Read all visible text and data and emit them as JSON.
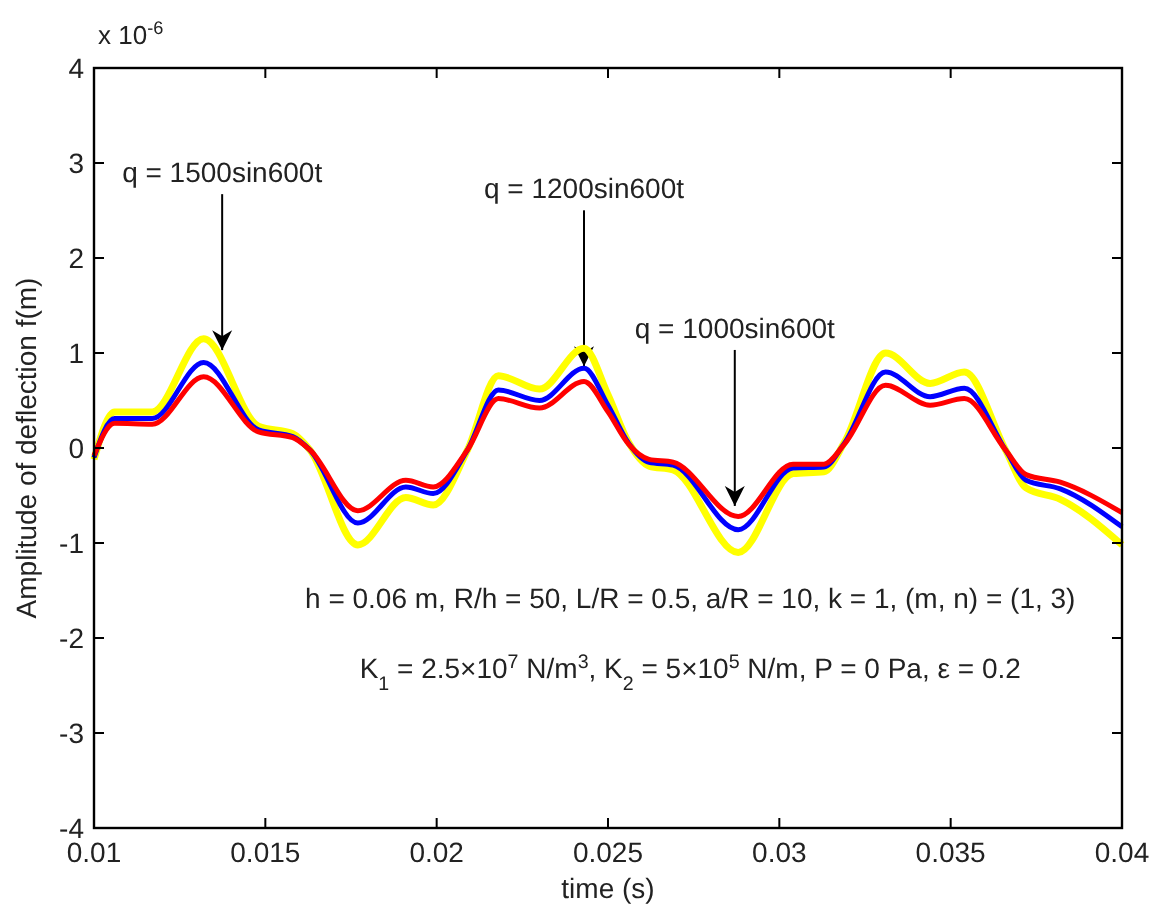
{
  "chart_data": {
    "type": "line",
    "xlabel": "time (s)",
    "ylabel": "Amplitude of deflection f(m)",
    "x": [
      0.01,
      0.0106,
      0.0117,
      0.0132,
      0.0148,
      0.0158,
      0.0163,
      0.0177,
      0.0191,
      0.0199,
      0.0209,
      0.0218,
      0.023,
      0.0243,
      0.025,
      0.0256,
      0.0262,
      0.0269,
      0.0288,
      0.0304,
      0.0313,
      0.0319,
      0.0331,
      0.0344,
      0.0354,
      0.0366,
      0.0372,
      0.0382,
      0.04
    ],
    "series": [
      {
        "color": "#ffff00",
        "values": [
          -0.12,
          0.38,
          0.38,
          1.15,
          0.23,
          0.15,
          -0.02,
          -1.02,
          -0.52,
          -0.6,
          -0.02,
          0.76,
          0.62,
          1.05,
          0.56,
          0.06,
          -0.19,
          -0.23,
          -1.1,
          -0.27,
          -0.25,
          0.06,
          1.0,
          0.68,
          0.8,
          -0.02,
          -0.42,
          -0.54,
          -1.02
        ]
      },
      {
        "color": "#0000ff",
        "values": [
          -0.1,
          0.31,
          0.31,
          0.9,
          0.19,
          0.12,
          -0.02,
          -0.79,
          -0.41,
          -0.48,
          -0.02,
          0.61,
          0.5,
          0.84,
          0.45,
          0.05,
          -0.15,
          -0.18,
          -0.86,
          -0.21,
          -0.2,
          0.05,
          0.8,
          0.54,
          0.63,
          -0.02,
          -0.34,
          -0.43,
          -0.83
        ]
      },
      {
        "color": "#ff0000",
        "values": [
          -0.08,
          0.26,
          0.25,
          0.75,
          0.17,
          0.11,
          -0.02,
          -0.66,
          -0.34,
          -0.41,
          -0.02,
          0.52,
          0.42,
          0.7,
          0.38,
          0.04,
          -0.12,
          -0.15,
          -0.72,
          -0.17,
          -0.17,
          0.04,
          0.66,
          0.45,
          0.52,
          -0.02,
          -0.28,
          -0.36,
          -0.68
        ]
      }
    ],
    "xlim": [
      0.01,
      0.04
    ],
    "xticks": [
      0.01,
      0.015,
      0.02,
      0.025,
      0.03,
      0.035,
      0.04
    ],
    "ylim": [
      -4,
      4
    ],
    "yticks": [
      -4,
      -3,
      -2,
      -1,
      0,
      1,
      2,
      3,
      4
    ],
    "grid": false,
    "marker": "none",
    "line_style": "solid",
    "annotations": [
      "x 10$^{-6}$",
      {
        "text": "q = 1500sin600t",
        "x": 0.01374,
        "y": 1.03
      },
      {
        "text": "q = 1200sin600t",
        "x": 0.0243,
        "y": 0.86
      },
      {
        "text": "q = 1000sin600t",
        "x": 0.0287,
        "y": -0.61
      },
      "h = 0.06 m, R/h = 50, L/R = 0.5, a/R = 10, k = 1, (m, n) = (1, 3)",
      "K$_{1}$ = 2.5×10$^{7}$ N/m$^{3}$, K$_{2}$ = 5×10$^{5}$ N/m, P = 0 Pa, ε = 0.2"
    ]
  }
}
